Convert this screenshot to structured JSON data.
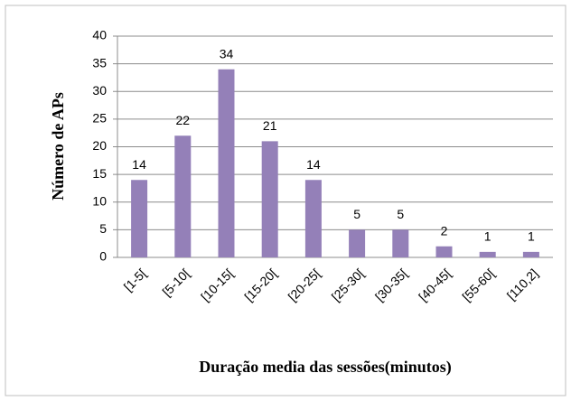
{
  "chart_data": {
    "type": "bar",
    "x_label": "Duração media das sessões(minutos)",
    "y_label": "Número de APs",
    "categories": [
      "[1-5[",
      "[5-10[",
      "[10-15[",
      "[15-20[",
      "[20-25[",
      "[25-30[",
      "[30-35[",
      "[40-45[",
      "[55-60[",
      "[110,2]"
    ],
    "values": [
      14,
      22,
      34,
      21,
      14,
      5,
      5,
      2,
      1,
      1
    ],
    "color": "#9480b8",
    "ylim": [
      0,
      40
    ],
    "yticks": [
      0,
      5,
      10,
      15,
      20,
      25,
      30,
      35,
      40
    ],
    "grid": true
  }
}
